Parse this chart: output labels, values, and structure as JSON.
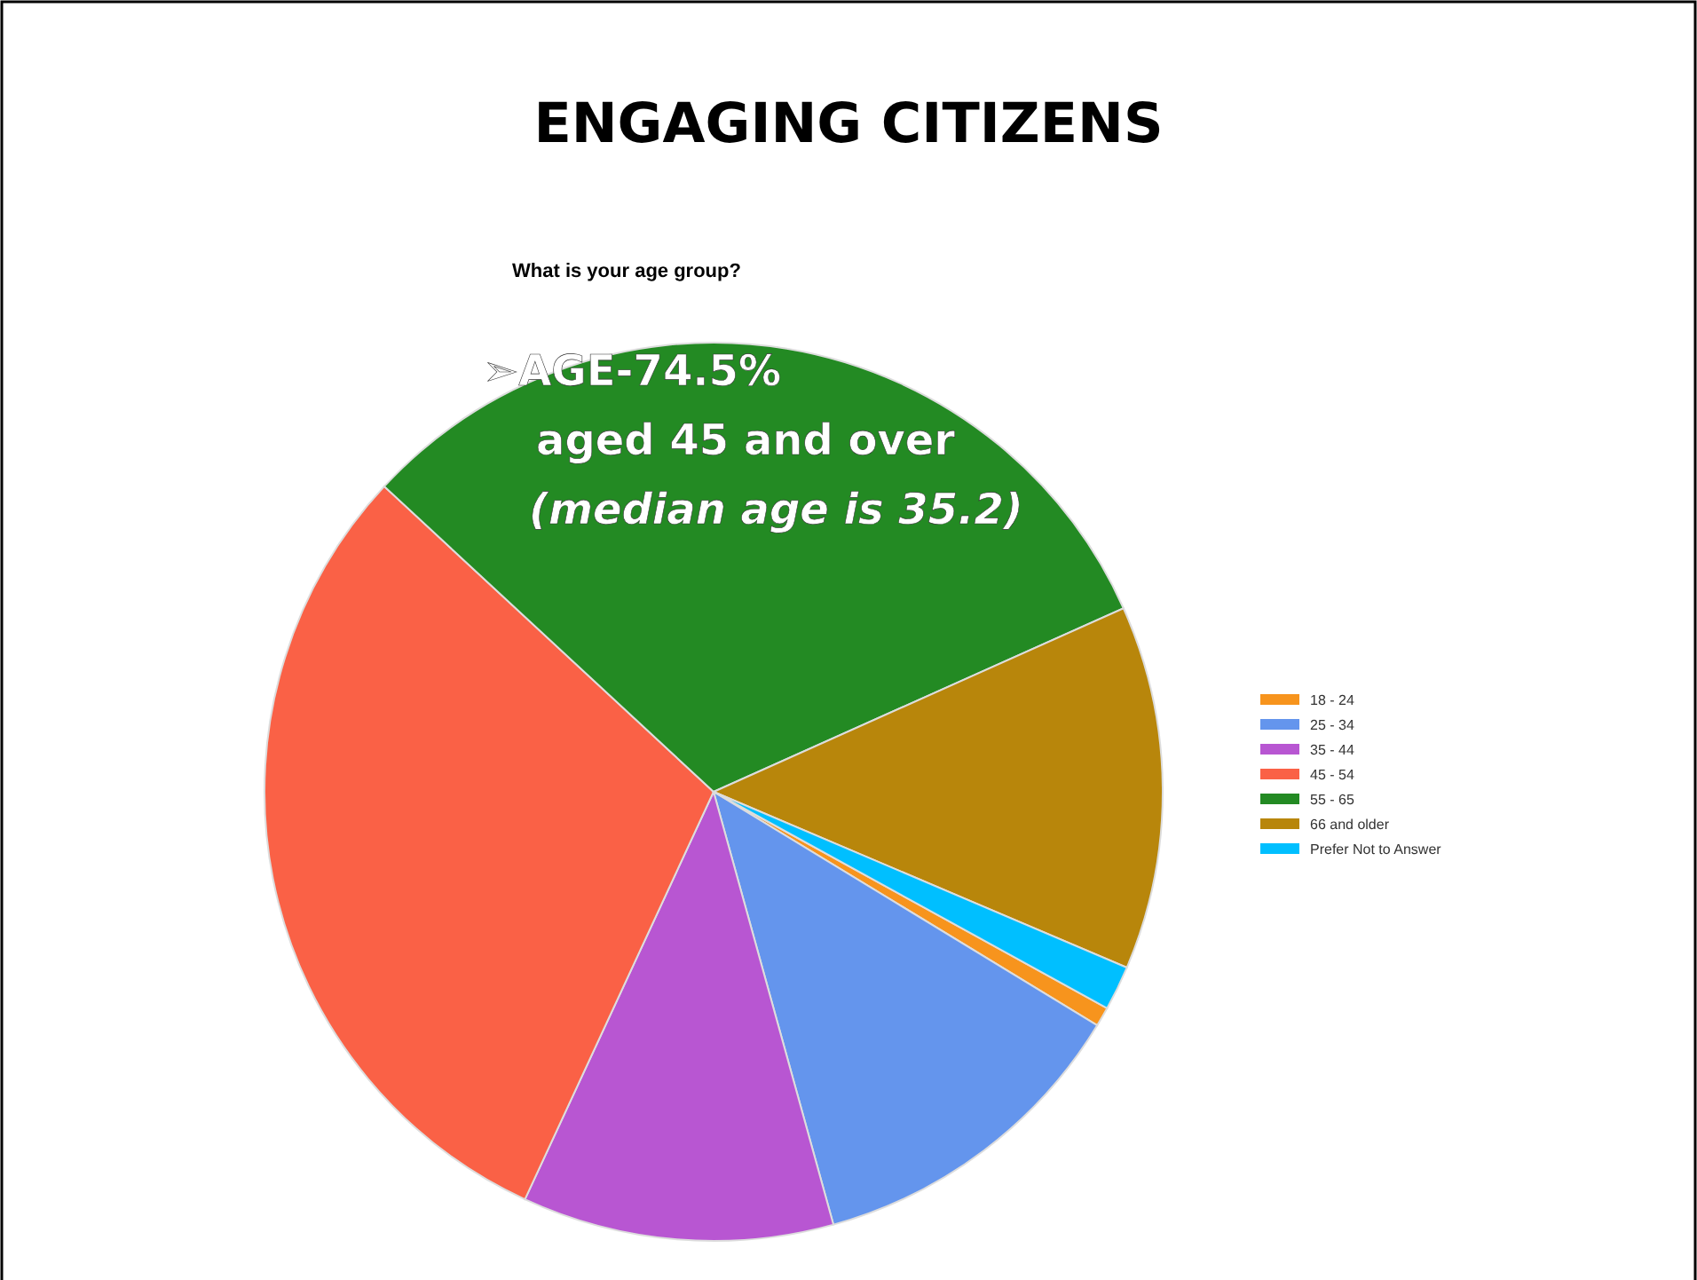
{
  "chart_data": {
    "type": "pie",
    "title": "ENGAGING CITIZENS",
    "subtitle": "What is your age group?",
    "categories": [
      "18 - 24",
      "25 - 34",
      "35 - 44",
      "45 - 54",
      "55 - 65",
      "66 and older",
      "Prefer Not to Answer"
    ],
    "values": [
      0.7,
      12.0,
      11.2,
      30.0,
      31.4,
      13.1,
      1.6
    ],
    "colors": [
      "#f7941d",
      "#6495ed",
      "#b856d2",
      "#fa6146",
      "#238a23",
      "#b8860b",
      "#00bfff"
    ],
    "annotations": [
      "➢AGE-74.5%",
      "aged 45 and over",
      "(median age is 35.2)"
    ],
    "legend": "right"
  }
}
